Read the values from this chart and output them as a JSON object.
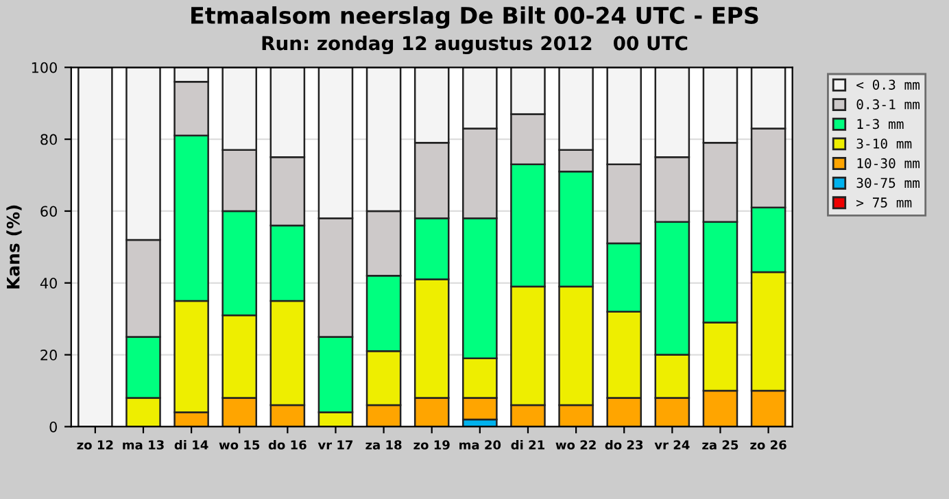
{
  "chart_data": {
    "type": "bar",
    "stacked": true,
    "title": "Etmaalsom neerslag De Bilt 00-24 UTC - EPS",
    "subtitle": "Run: zondag 12 augustus 2012   00 UTC",
    "ylabel": "Kans (%)",
    "categories": [
      "zo 12",
      "ma 13",
      "di 14",
      "wo 15",
      "do 16",
      "vr 17",
      "za 18",
      "zo 19",
      "ma 20",
      "di 21",
      "wo 22",
      "do 23",
      "vr 24",
      "za 25",
      "zo 26"
    ],
    "series": [
      {
        "name": "> 75 mm",
        "color": "#ee0000",
        "values": [
          0,
          0,
          0,
          0,
          0,
          0,
          0,
          0,
          0,
          0,
          0,
          0,
          0,
          0,
          0
        ]
      },
      {
        "name": "30-75 mm",
        "color": "#00b2ee",
        "values": [
          0,
          0,
          0,
          0,
          0,
          0,
          0,
          0,
          2,
          0,
          0,
          0,
          0,
          0,
          0
        ]
      },
      {
        "name": "10-30 mm",
        "color": "#ffa500",
        "values": [
          0,
          0,
          4,
          8,
          6,
          0,
          6,
          8,
          6,
          6,
          6,
          8,
          8,
          10,
          10
        ]
      },
      {
        "name": "3-10 mm",
        "color": "#eeee00",
        "values": [
          0,
          8,
          31,
          23,
          29,
          4,
          15,
          33,
          11,
          33,
          33,
          24,
          12,
          19,
          33
        ]
      },
      {
        "name": "1-3 mm",
        "color": "#00ff7f",
        "values": [
          0,
          17,
          46,
          29,
          21,
          21,
          21,
          17,
          39,
          34,
          32,
          19,
          37,
          28,
          18
        ]
      },
      {
        "name": "0.3-1 mm",
        "color": "#cdc9c9",
        "values": [
          0,
          27,
          15,
          17,
          19,
          33,
          18,
          21,
          25,
          14,
          6,
          22,
          18,
          22,
          22
        ]
      },
      {
        "name": "< 0.3 mm",
        "color": "#f4f4f4",
        "values": [
          100,
          48,
          4,
          23,
          25,
          42,
          40,
          21,
          17,
          13,
          23,
          27,
          25,
          21,
          17
        ]
      }
    ],
    "ylim": [
      0,
      100
    ],
    "yticks": [
      0,
      20,
      40,
      60,
      80,
      100
    ],
    "grid": "y",
    "legend": "top right"
  }
}
